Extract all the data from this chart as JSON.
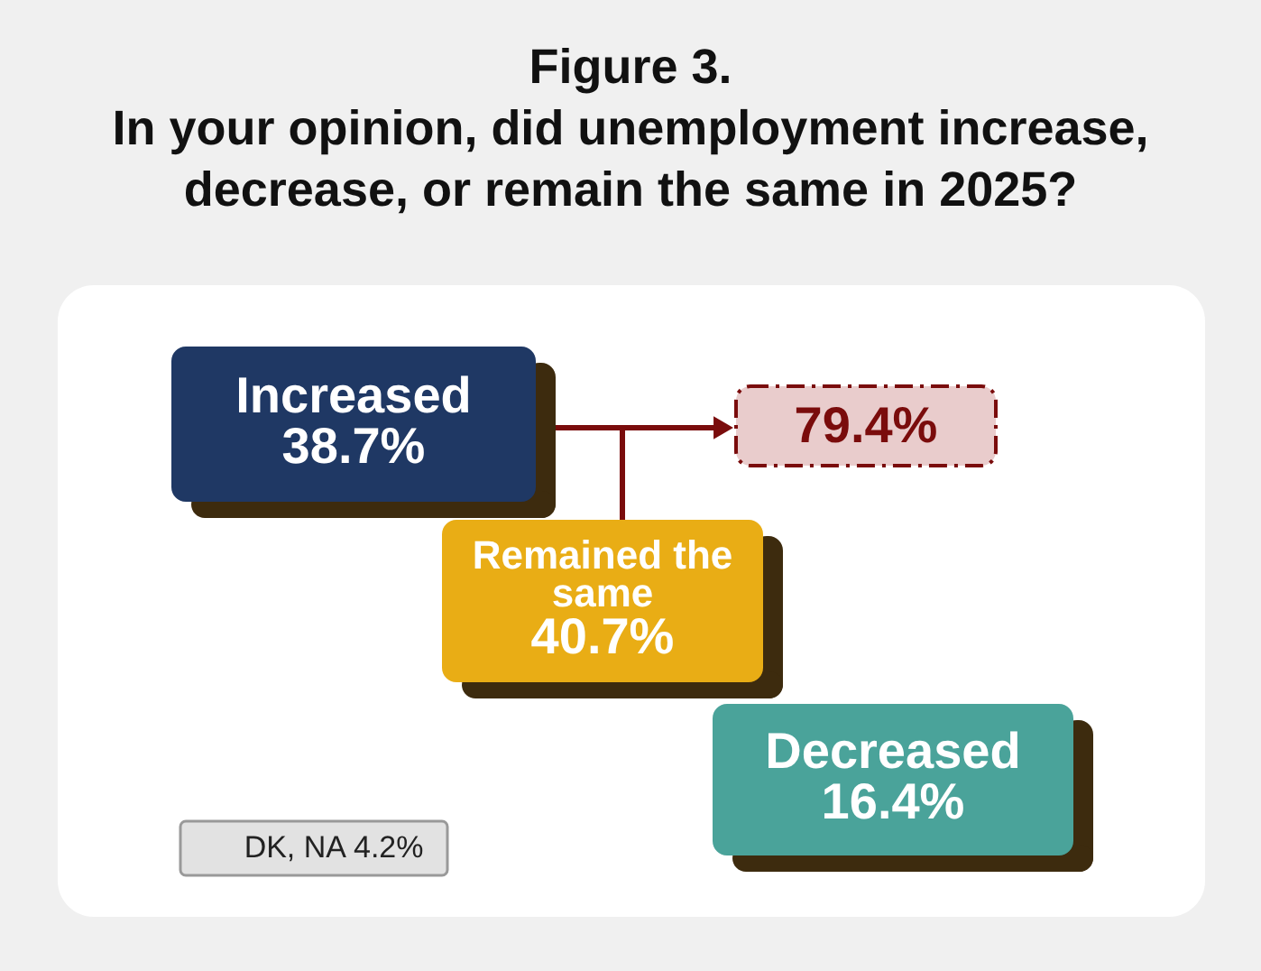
{
  "chart_data": {
    "type": "other",
    "title": "Figure 3.",
    "subtitle": "In your opinion, did unemployment increase, decrease, or remain the same in 2025?",
    "categories": [
      "Increased",
      "Remained the same",
      "Decreased",
      "DK, NA"
    ],
    "values": [
      38.7,
      40.7,
      16.4,
      4.2
    ],
    "value_labels": [
      "38.7%",
      "40.7%",
      "16.4%",
      "4.2%"
    ],
    "colors": [
      "#1f3864",
      "#e9ad15",
      "#4aa39a",
      "#e2e2e2"
    ],
    "annotations": [
      "79.4%"
    ]
  }
}
